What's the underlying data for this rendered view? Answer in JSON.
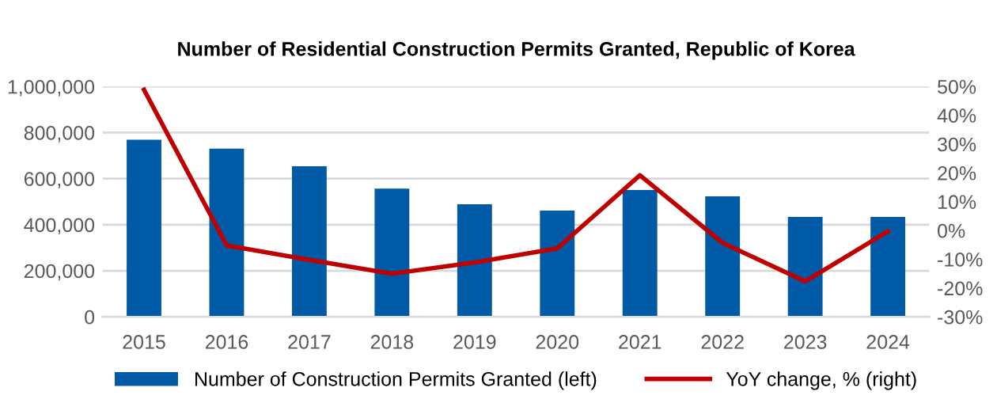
{
  "chart_data": {
    "type": "bar",
    "title": "Number of Residential Construction Permits Granted, Republic of Korea",
    "categories": [
      "2015",
      "2016",
      "2017",
      "2018",
      "2019",
      "2020",
      "2021",
      "2022",
      "2023",
      "2024"
    ],
    "series": [
      {
        "name": "Number of Construction Permits Granted (left)",
        "color": "#005aa5",
        "values": [
          769000,
          730000,
          654000,
          557000,
          489000,
          461000,
          551000,
          523000,
          434000,
          434000
        ]
      },
      {
        "name": "YoY change, % (right)",
        "type": "line",
        "axis": "y2",
        "color": "#c00000",
        "values": [
          48.9,
          -5.2,
          -10.2,
          -15,
          -11.1,
          -6.2,
          19.2,
          -4.3,
          -17.7,
          -0.3
        ]
      }
    ],
    "ylim": [
      0,
      1000000
    ],
    "yticks": [
      {
        "value": 0,
        "label": "0"
      },
      {
        "value": 200000,
        "label": "200,000"
      },
      {
        "value": 400000,
        "label": "400,000"
      },
      {
        "value": 600000,
        "label": "600,000"
      },
      {
        "value": 800000,
        "label": "800,000"
      },
      {
        "value": 1000000,
        "label": "1,000,000"
      }
    ],
    "y2lim": [
      -30,
      50
    ],
    "y2ticks": [
      {
        "value": -30,
        "label": "-30%"
      },
      {
        "value": -20,
        "label": "-20%"
      },
      {
        "value": -10,
        "label": "-10%"
      },
      {
        "value": 0,
        "label": "0%"
      },
      {
        "value": 10,
        "label": "10%"
      },
      {
        "value": 20,
        "label": "20%"
      },
      {
        "value": 30,
        "label": "30%"
      },
      {
        "value": 40,
        "label": "40%"
      },
      {
        "value": 50,
        "label": "50%"
      }
    ],
    "grid": "y",
    "legend": "bottom"
  }
}
